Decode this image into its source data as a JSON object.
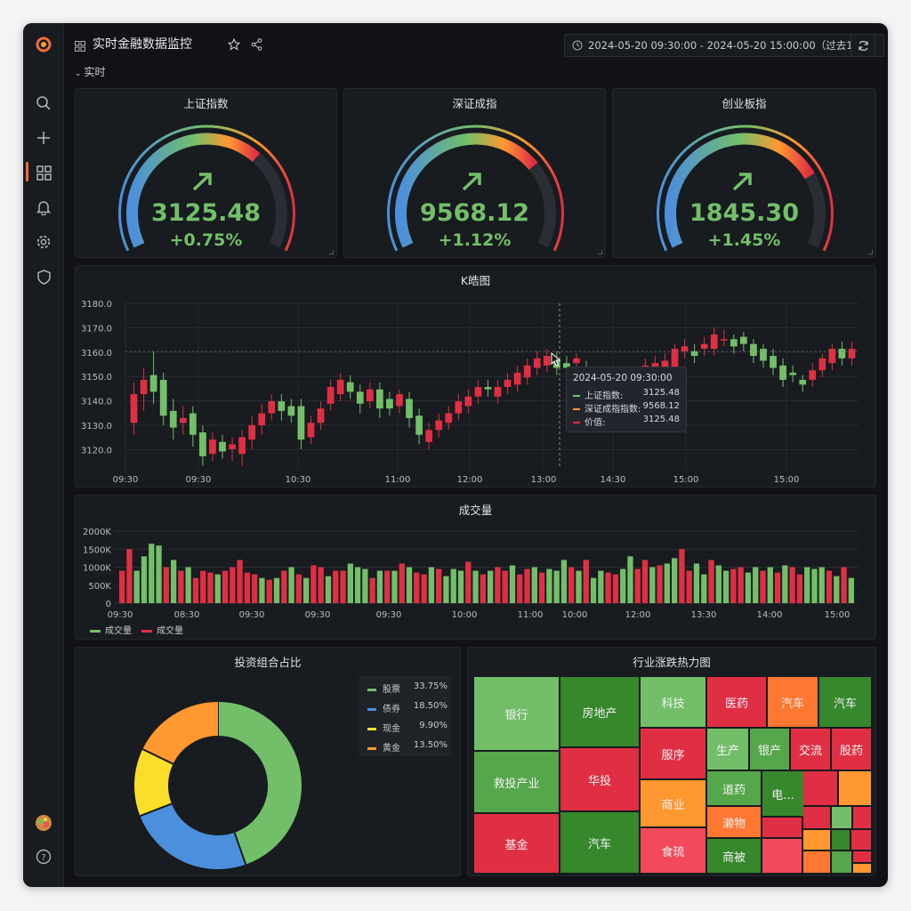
{
  "header": {
    "title": "实时金融数据监控",
    "time_range": "2024-05-20 09:30:00 - 2024-05-20 15:00:00（过去1天）",
    "row_title": "实时"
  },
  "icons": {
    "logo": "grafana-logo",
    "sidebar": [
      "search-icon",
      "plus-icon",
      "dashboards-icon",
      "bell-icon",
      "gear-icon",
      "shield-icon"
    ],
    "bottom": [
      "avatar",
      "help-icon"
    ]
  },
  "colors": {
    "green": "#73bf69",
    "red": "#e02f44",
    "blue": "#4c8fdc",
    "yellow": "#fade2a",
    "orange": "#ff9830",
    "accent": "#f26b3a"
  },
  "gauges": [
    {
      "title": "上证指数",
      "value": "3125.48",
      "change": "+0.75%",
      "level": 0.68
    },
    {
      "title": "深证成指",
      "value": "9568.12",
      "change": "+1.12%",
      "level": 0.72
    },
    {
      "title": "创业板指",
      "value": "1845.30",
      "change": "+1.45%",
      "level": 0.76
    }
  ],
  "kline": {
    "title": "K皓图",
    "y_ticks": [
      "3180.0",
      "3170.0",
      "3160.0",
      "3150.0",
      "3140.0",
      "3130.0",
      "3120.0"
    ],
    "x_ticks": [
      "09:30",
      "09:30",
      "10:30",
      "11:00",
      "12:00",
      "13:00",
      "14:30",
      "15:00",
      "15:00"
    ],
    "tooltip": {
      "time": "2024-05-20 09:30:00",
      "rows": [
        {
          "label": "上证指数:",
          "value": "3125.48",
          "color": "#73bf69"
        },
        {
          "label": "深证成指指数:",
          "value": "9568.12",
          "color": "#ff9830"
        },
        {
          "label": "价值:",
          "value": "3125.48",
          "color": "#e02f44"
        }
      ]
    }
  },
  "chart_data": [
    {
      "type": "candlestick",
      "title": "K皓图",
      "ylim": [
        3115,
        3185
      ],
      "candles": [
        [
          3135,
          3147,
          3130,
          3152
        ],
        [
          3147,
          3153,
          3140,
          3158
        ],
        [
          3155,
          3148,
          3143,
          3165
        ],
        [
          3153,
          3138,
          3134,
          3156
        ],
        [
          3140,
          3133,
          3128,
          3145
        ],
        [
          3135,
          3137,
          3130,
          3142
        ],
        [
          3139,
          3130,
          3125,
          3142
        ],
        [
          3131,
          3121,
          3117,
          3134
        ],
        [
          3122,
          3128,
          3119,
          3131
        ],
        [
          3127,
          3123,
          3120,
          3130
        ],
        [
          3124,
          3126,
          3119,
          3129
        ],
        [
          3122,
          3129,
          3117,
          3132
        ],
        [
          3128,
          3134,
          3124,
          3138
        ],
        [
          3134,
          3139,
          3130,
          3143
        ],
        [
          3139,
          3144,
          3136,
          3147
        ],
        [
          3144,
          3140,
          3136,
          3147
        ],
        [
          3142,
          3138,
          3135,
          3145
        ],
        [
          3142,
          3128,
          3124,
          3145
        ],
        [
          3129,
          3135,
          3126,
          3138
        ],
        [
          3135,
          3141,
          3132,
          3144
        ],
        [
          3143,
          3150,
          3140,
          3153
        ],
        [
          3147,
          3153,
          3144,
          3156
        ],
        [
          3152,
          3148,
          3145,
          3155
        ],
        [
          3148,
          3143,
          3139,
          3151
        ],
        [
          3144,
          3149,
          3141,
          3152
        ],
        [
          3149,
          3141,
          3137,
          3152
        ],
        [
          3145,
          3141,
          3138,
          3148
        ],
        [
          3142,
          3147,
          3139,
          3149
        ],
        [
          3145,
          3137,
          3133,
          3148
        ],
        [
          3138,
          3130,
          3126,
          3141
        ],
        [
          3127,
          3132,
          3124,
          3135
        ],
        [
          3132,
          3136,
          3129,
          3139
        ],
        [
          3135,
          3139,
          3132,
          3142
        ],
        [
          3139,
          3144,
          3136,
          3147
        ],
        [
          3142,
          3146,
          3139,
          3149
        ],
        [
          3146,
          3150,
          3143,
          3153
        ],
        [
          3150,
          3149,
          3146,
          3153
        ],
        [
          3146,
          3150,
          3143,
          3153
        ],
        [
          3150,
          3153,
          3147,
          3156
        ],
        [
          3151,
          3156,
          3148,
          3159
        ],
        [
          3154,
          3159,
          3151,
          3162
        ],
        [
          3158,
          3162,
          3155,
          3165
        ],
        [
          3159,
          3163,
          3156,
          3166
        ],
        [
          3162,
          3158,
          3155,
          3165
        ],
        [
          3160,
          3158,
          3155,
          3163
        ],
        [
          3160,
          3162,
          3157,
          3164
        ],
        [
          3158,
          3148,
          3143,
          3161
        ],
        [
          3149,
          3144,
          3140,
          3152
        ],
        [
          3146,
          3150,
          3142,
          3153
        ],
        [
          3150,
          3152,
          3147,
          3155
        ],
        [
          3151,
          3147,
          3143,
          3154
        ],
        [
          3148,
          3152,
          3145,
          3156
        ],
        [
          3154,
          3159,
          3150,
          3162
        ],
        [
          3156,
          3160,
          3152,
          3163
        ],
        [
          3158,
          3161,
          3154,
          3164
        ],
        [
          3158,
          3166,
          3155,
          3168
        ],
        [
          3165,
          3167,
          3162,
          3170
        ],
        [
          3165,
          3163,
          3160,
          3168
        ],
        [
          3166,
          3168,
          3163,
          3171
        ],
        [
          3166,
          3172,
          3163,
          3175
        ],
        [
          3170,
          3170,
          3167,
          3174
        ],
        [
          3170,
          3167,
          3164,
          3172
        ],
        [
          3171,
          3168,
          3165,
          3173
        ],
        [
          3168,
          3163,
          3160,
          3170
        ],
        [
          3166,
          3161,
          3158,
          3168
        ],
        [
          3163,
          3158,
          3155,
          3166
        ],
        [
          3159,
          3153,
          3150,
          3162
        ],
        [
          3156,
          3155,
          3152,
          3159
        ],
        [
          3153,
          3151,
          3148,
          3155
        ],
        [
          3153,
          3157,
          3150,
          3160
        ],
        [
          3157,
          3162,
          3154,
          3164
        ],
        [
          3160,
          3166,
          3157,
          3168
        ],
        [
          3166,
          3162,
          3159,
          3169
        ],
        [
          3162,
          3166,
          3159,
          3169
        ]
      ]
    },
    {
      "type": "bar",
      "title": "成交量",
      "y_ticks": [
        "2000K",
        "1500K",
        "1000K",
        "500K",
        "0"
      ],
      "x_ticks": [
        "09:30",
        "08:30",
        "09:30",
        "09:30",
        "09:30",
        "10:00",
        "11:00",
        "10:00",
        "12:00",
        "13:30",
        "14:00",
        "15:00"
      ],
      "ylim": [
        0,
        2000
      ],
      "values": [
        900,
        1500,
        900,
        1300,
        1650,
        1600,
        1000,
        1200,
        900,
        1000,
        700,
        900,
        850,
        800,
        900,
        1000,
        1200,
        850,
        800,
        700,
        650,
        700,
        900,
        1000,
        800,
        700,
        1050,
        1000,
        750,
        900,
        900,
        1100,
        1000,
        950,
        700,
        900,
        900,
        900,
        1100,
        1000,
        850,
        800,
        1000,
        950,
        750,
        950,
        900,
        1150,
        900,
        800,
        900,
        1000,
        900,
        1050,
        800,
        950,
        1000,
        850,
        950,
        900,
        1200,
        1000,
        900,
        1200,
        700,
        900,
        850,
        800,
        950,
        1300,
        950,
        1200,
        1000,
        1050,
        1100,
        1250,
        1500,
        900,
        1100,
        800,
        1200,
        1050,
        900,
        950,
        1000,
        850,
        1000,
        900,
        1000,
        850,
        1050,
        1000,
        800,
        1000,
        950,
        1000,
        900,
        750,
        1000,
        700
      ],
      "colors": [
        "r",
        "r",
        "g",
        "g",
        "g",
        "g",
        "r",
        "g",
        "r",
        "g",
        "r",
        "r",
        "r",
        "g",
        "r",
        "r",
        "r",
        "r",
        "r",
        "g",
        "r",
        "g",
        "r",
        "g",
        "r",
        "g",
        "r",
        "r",
        "g",
        "r",
        "r",
        "g",
        "g",
        "g",
        "r",
        "g",
        "r",
        "g",
        "r",
        "g",
        "r",
        "r",
        "g",
        "r",
        "g",
        "g",
        "g",
        "r",
        "g",
        "r",
        "g",
        "r",
        "r",
        "g",
        "r",
        "r",
        "g",
        "r",
        "g",
        "g",
        "g",
        "r",
        "g",
        "r",
        "g",
        "g",
        "r",
        "r",
        "g",
        "g",
        "r",
        "r",
        "g",
        "r",
        "g",
        "g",
        "r",
        "r",
        "g",
        "g",
        "r",
        "g",
        "g",
        "r",
        "r",
        "g",
        "g",
        "r",
        "g",
        "r",
        "g",
        "r",
        "r",
        "g",
        "g",
        "g",
        "r",
        "g",
        "r",
        "g"
      ],
      "legend": [
        "成交量",
        "成交量"
      ]
    },
    {
      "type": "pie",
      "title": "投资组合占比",
      "slices": [
        {
          "name": "股票",
          "value": 33.75,
          "label": "33.75%",
          "color": "#73bf69"
        },
        {
          "name": "债券",
          "value": 18.5,
          "label": "18.50%",
          "color": "#4c8fdc"
        },
        {
          "name": "现金",
          "value": 9.9,
          "label": "9.90%",
          "color": "#fade2a"
        },
        {
          "name": "黄金",
          "value": 13.5,
          "label": "13.50%",
          "color": "#ff9830"
        }
      ]
    },
    {
      "type": "heatmap",
      "title": "行业涨跌热力图",
      "cells": [
        {
          "label": "银行",
          "color": "#73bf69"
        },
        {
          "label": "救投产业",
          "color": "#56a64b"
        },
        {
          "label": "基金",
          "color": "#e02f44"
        },
        {
          "label": "房地产",
          "color": "#37872d"
        },
        {
          "label": "华投",
          "color": "#e02f44"
        },
        {
          "label": "汽车",
          "color": "#37872d"
        },
        {
          "label": "科技",
          "color": "#73bf69"
        },
        {
          "label": "服序",
          "color": "#e02f44"
        },
        {
          "label": "商业",
          "color": "#ff9830"
        },
        {
          "label": "食琉",
          "color": "#f2495c"
        },
        {
          "label": "医药",
          "color": "#e02f44"
        },
        {
          "label": "汽车",
          "color": "#ff7730"
        },
        {
          "label": "汽车",
          "color": "#37872d"
        },
        {
          "label": "生产",
          "color": "#73bf69"
        },
        {
          "label": "银产",
          "color": "#56a64b"
        },
        {
          "label": "交流",
          "color": "#e02f44"
        },
        {
          "label": "股药",
          "color": "#e02f44"
        },
        {
          "label": "道药",
          "color": "#56a64b"
        },
        {
          "label": "电...",
          "color": "#37872d"
        },
        {
          "label": "濑物",
          "color": "#ff7730"
        },
        {
          "label": "商被",
          "color": "#37872d"
        }
      ]
    }
  ]
}
